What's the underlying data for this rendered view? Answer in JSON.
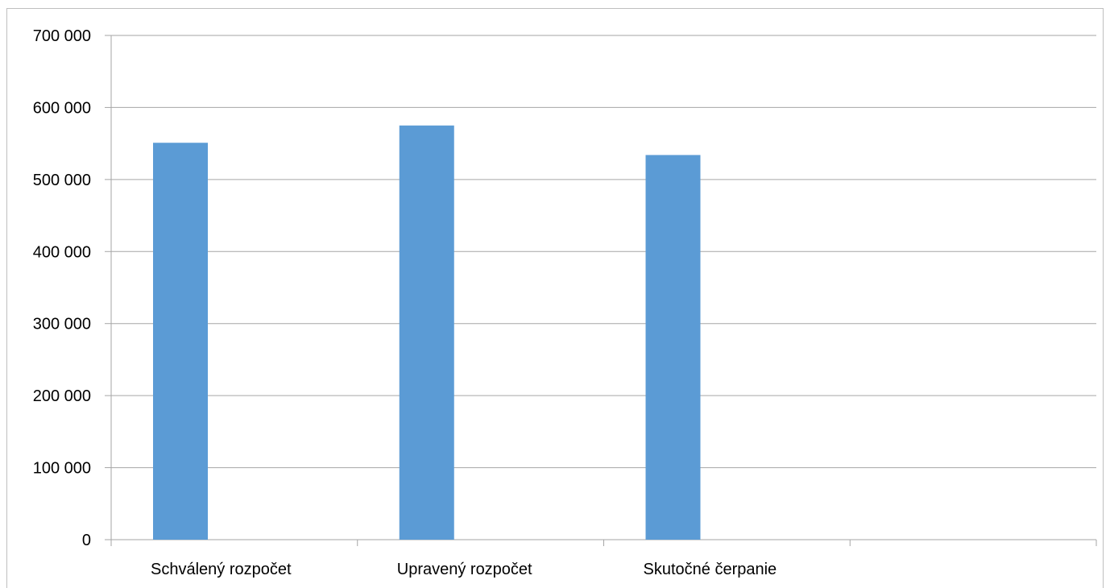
{
  "chart_data": {
    "type": "bar",
    "categories": [
      "Schválený rozpočet",
      "Upravený rozpočet",
      "Skutočné čerpanie",
      ""
    ],
    "series": [
      {
        "values": [
          551000,
          575000,
          534000,
          null
        ],
        "color": "#5b9bd5"
      }
    ],
    "y_ticks": [
      "0",
      "100 000",
      "200 000",
      "300 000",
      "400 000",
      "500 000",
      "600 000",
      "700 000"
    ],
    "ylim": [
      0,
      700000
    ],
    "grid": true,
    "legend": "none",
    "colors": {
      "bar": "#5b9bd5",
      "grid": "#a6a6a6",
      "axis": "#a6a6a6"
    }
  }
}
